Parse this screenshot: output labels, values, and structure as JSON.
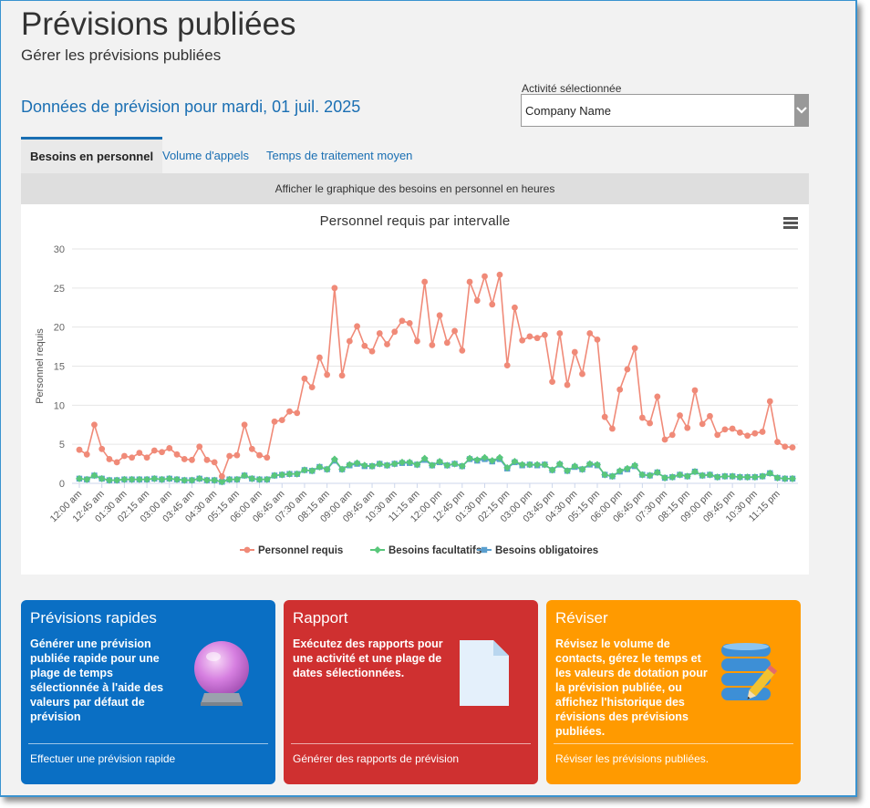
{
  "header": {
    "title": "Prévisions publiées",
    "subtitle": "Gérer les prévisions publiées",
    "forecast_heading": "Données de prévision pour mardi, 01 juil. 2025"
  },
  "activity": {
    "label": "Activité sélectionnée",
    "value": "Company Name"
  },
  "tabs": [
    {
      "label": "Besoins en personnel",
      "active": true
    },
    {
      "label": "Volume d'appels",
      "active": false
    },
    {
      "label": "Temps de traitement moyen",
      "active": false
    }
  ],
  "chart_note": "Afficher le graphique des besoins en personnel en heures",
  "chart_data": {
    "type": "line",
    "title": "Personnel requis par intervalle",
    "xlabel": "",
    "ylabel": "Personnel requis",
    "ylim": [
      0,
      30
    ],
    "yticks": [
      0,
      5,
      10,
      15,
      20,
      25,
      30
    ],
    "x_interval_minutes": 15,
    "x_tick_labels": [
      "12:00 am",
      "12:45 am",
      "01:30 am",
      "02:15 am",
      "03:00 am",
      "03:45 am",
      "04:30 am",
      "05:15 am",
      "06:00 am",
      "06:45 am",
      "07:30 am",
      "08:15 am",
      "09:00 am",
      "09:45 am",
      "10:30 am",
      "11:15 am",
      "12:00 pm",
      "12:45 pm",
      "01:30 pm",
      "02:15 pm",
      "03:00 pm",
      "03:45 pm",
      "04:30 pm",
      "05:15 pm",
      "06:00 pm",
      "06:45 pm",
      "07:30 pm",
      "08:15 pm",
      "09:00 pm",
      "09:45 pm",
      "10:30 pm",
      "11:15 pm"
    ],
    "legend_position": "bottom-center",
    "grid": true,
    "series": [
      {
        "name": "Personnel requis",
        "color": "#f08a78",
        "marker": "circle",
        "values": [
          4.3,
          3.7,
          7.5,
          4.4,
          3.1,
          2.7,
          3.5,
          3.3,
          3.9,
          3.3,
          4.2,
          4.0,
          4.5,
          3.7,
          3.1,
          3.0,
          4.7,
          3.0,
          2.7,
          0.9,
          3.5,
          3.6,
          7.5,
          4.4,
          3.6,
          3.3,
          7.9,
          8.1,
          9.2,
          9.0,
          13.4,
          12.3,
          16.1,
          13.9,
          25.0,
          13.8,
          18.2,
          20.1,
          17.6,
          16.9,
          19.2,
          17.8,
          19.4,
          20.8,
          20.5,
          18.2,
          25.8,
          17.7,
          21.5,
          18.0,
          19.5,
          17.0,
          25.8,
          23.4,
          26.5,
          22.9,
          26.7,
          15.1,
          22.5,
          18.3,
          18.8,
          18.6,
          19.0,
          13.0,
          19.2,
          12.6,
          16.8,
          14.0,
          19.2,
          18.4,
          8.5,
          7.0,
          12.0,
          14.6,
          17.3,
          8.4,
          7.7,
          11.1,
          5.6,
          6.2,
          8.7,
          7.1,
          11.9,
          7.6,
          8.6,
          6.2,
          6.9,
          7.0,
          6.5,
          6.1,
          6.4,
          6.6,
          10.5,
          5.3,
          4.7,
          4.6
        ]
      },
      {
        "name": "Besoins facultatifs",
        "color": "#59c77b",
        "marker": "diamond",
        "values": [
          0.6,
          0.5,
          1.0,
          0.6,
          0.4,
          0.4,
          0.5,
          0.5,
          0.5,
          0.5,
          0.6,
          0.5,
          0.6,
          0.5,
          0.4,
          0.4,
          0.6,
          0.4,
          0.4,
          0.2,
          0.5,
          0.5,
          1.0,
          0.6,
          0.5,
          0.5,
          1.0,
          1.1,
          1.2,
          1.2,
          1.7,
          1.6,
          2.1,
          1.8,
          3.1,
          1.8,
          2.4,
          2.6,
          2.3,
          2.2,
          2.5,
          2.3,
          2.5,
          2.7,
          2.7,
          2.4,
          3.2,
          2.3,
          2.8,
          2.3,
          2.5,
          2.2,
          3.2,
          3.0,
          3.3,
          2.9,
          3.3,
          2.0,
          2.8,
          2.4,
          2.4,
          2.4,
          2.4,
          1.7,
          2.5,
          1.6,
          2.2,
          1.8,
          2.5,
          2.4,
          1.1,
          0.9,
          1.6,
          1.9,
          2.3,
          1.1,
          1.0,
          1.4,
          0.7,
          0.8,
          1.1,
          0.9,
          1.5,
          1.0,
          1.1,
          0.8,
          0.9,
          0.9,
          0.8,
          0.8,
          0.8,
          0.9,
          1.3,
          0.7,
          0.6,
          0.6
        ]
      },
      {
        "name": "Besoins obligatoires",
        "color": "#5a9fcf",
        "marker": "square",
        "values": [
          0.6,
          0.5,
          1.0,
          0.6,
          0.4,
          0.4,
          0.5,
          0.5,
          0.5,
          0.5,
          0.6,
          0.5,
          0.6,
          0.5,
          0.4,
          0.4,
          0.6,
          0.4,
          0.4,
          0.2,
          0.5,
          0.5,
          1.0,
          0.6,
          0.5,
          0.5,
          1.0,
          1.1,
          1.2,
          1.2,
          1.7,
          1.6,
          2.1,
          1.8,
          2.9,
          1.8,
          2.3,
          2.5,
          2.2,
          2.2,
          2.5,
          2.3,
          2.5,
          2.6,
          2.6,
          2.4,
          3.0,
          2.3,
          2.7,
          2.3,
          2.5,
          2.2,
          3.1,
          2.9,
          3.1,
          2.8,
          3.1,
          1.9,
          2.7,
          2.3,
          2.4,
          2.3,
          2.4,
          1.7,
          2.4,
          1.6,
          2.1,
          1.8,
          2.4,
          2.3,
          1.1,
          0.9,
          1.5,
          1.8,
          2.2,
          1.1,
          1.0,
          1.4,
          0.7,
          0.8,
          1.1,
          0.9,
          1.5,
          1.0,
          1.1,
          0.8,
          0.9,
          0.9,
          0.8,
          0.8,
          0.8,
          0.9,
          1.3,
          0.7,
          0.6,
          0.6
        ]
      }
    ]
  },
  "cards": [
    {
      "title": "Prévisions rapides",
      "text_lines": [
        "Générer une prévision",
        "publiée rapide pour une",
        "plage de temps",
        "sélectionnée à l'aide des",
        "valeurs par défaut de",
        "prévision"
      ],
      "link": "Effectuer une prévision rapide",
      "icon": "crystal-ball-icon"
    },
    {
      "title": "Rapport",
      "text_lines": [
        "Exécutez des rapports pour",
        "une activité et une plage de",
        "dates sélectionnées."
      ],
      "link": "Générer des rapports de prévision",
      "icon": "document-icon"
    },
    {
      "title": "Réviser",
      "text_lines": [
        "Révisez le volume de",
        "contacts, gérez le temps et",
        "les valeurs de dotation pour",
        "la prévision publiée, ou",
        "affichez l'historique des",
        "révisions des prévisions",
        "publiées."
      ],
      "link": "Réviser les prévisions publiées.",
      "icon": "database-edit-icon"
    }
  ],
  "colors": {
    "accent": "#1a6fb3",
    "card_blue": "#0a6fc4",
    "card_red": "#cf3030",
    "card_orange": "#ff9a00"
  }
}
